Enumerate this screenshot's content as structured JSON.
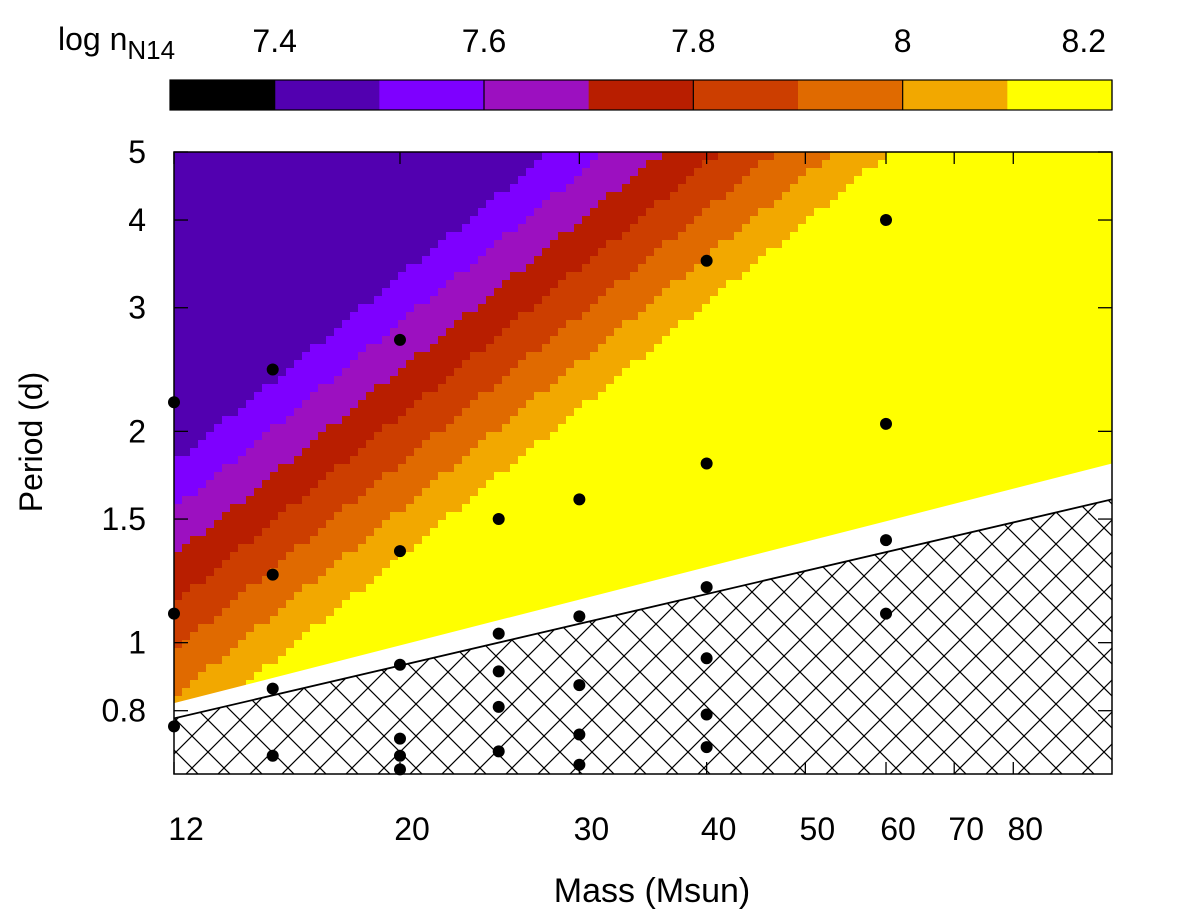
{
  "chart_data": {
    "type": "heatmap",
    "title": "",
    "xlabel": "Mass (Msun)",
    "ylabel": "Period (d)",
    "xscale": "log",
    "yscale": "log",
    "xlim": [
      12,
      100
    ],
    "ylim": [
      0.65,
      5
    ],
    "xticks": [
      {
        "value": 12,
        "label": "12"
      },
      {
        "value": 20,
        "label": "20"
      },
      {
        "value": 30,
        "label": "30"
      },
      {
        "value": 40,
        "label": "40"
      },
      {
        "value": 50,
        "label": "50"
      },
      {
        "value": 60,
        "label": "60"
      },
      {
        "value": 70,
        "label": "70"
      },
      {
        "value": 80,
        "label": "80"
      }
    ],
    "yticks": [
      {
        "value": 0.8,
        "label": "0.8"
      },
      {
        "value": 1,
        "label": "1"
      },
      {
        "value": 1.5,
        "label": "1.5"
      },
      {
        "value": 2,
        "label": "2"
      },
      {
        "value": 3,
        "label": "3"
      },
      {
        "value": 4,
        "label": "4"
      },
      {
        "value": 5,
        "label": "5"
      }
    ],
    "colorbar": {
      "label_main": "log n",
      "label_sub": "N14",
      "range": [
        7.3,
        8.2
      ],
      "tick_labels": [
        {
          "value": 7.4,
          "label": "7.4"
        },
        {
          "value": 7.6,
          "label": "7.6"
        },
        {
          "value": 7.8,
          "label": "7.8"
        },
        {
          "value": 8.0,
          "label": "8"
        },
        {
          "value": 8.2,
          "label": "8.2"
        }
      ],
      "bins": [
        {
          "from": 7.3,
          "to": 7.4,
          "color": "#000000"
        },
        {
          "from": 7.4,
          "to": 7.5,
          "color": "#5200b0"
        },
        {
          "from": 7.5,
          "to": 7.6,
          "color": "#7e00ff"
        },
        {
          "from": 7.6,
          "to": 7.7,
          "color": "#9c10c0"
        },
        {
          "from": 7.7,
          "to": 7.8,
          "color": "#b81e00"
        },
        {
          "from": 7.8,
          "to": 7.9,
          "color": "#cc3e00"
        },
        {
          "from": 7.9,
          "to": 8.0,
          "color": "#e06a00"
        },
        {
          "from": 8.0,
          "to": 8.1,
          "color": "#f2a800"
        },
        {
          "from": 8.1,
          "to": 8.2,
          "color": "#ffff00"
        }
      ]
    },
    "contour_model": {
      "description": "log n_N14 increases toward higher mass and shorter period; iso-contours are power laws P = P0 * (M/12)^slope",
      "base_level_period": 1.5,
      "slope": 1.2,
      "levels_per_dex_period": 1.5
    },
    "excluded_region": {
      "description": "hatched region below the contact / Roche-lobe overflow limit",
      "boundary": [
        {
          "mass": 12,
          "period": 0.78
        },
        {
          "mass": 100,
          "period": 1.6
        }
      ],
      "white_gap_upper_boundary": [
        {
          "mass": 12,
          "period": 0.82
        },
        {
          "mass": 100,
          "period": 1.8
        }
      ]
    },
    "points": [
      {
        "mass": 12,
        "period": 2.2
      },
      {
        "mass": 12,
        "period": 1.1
      },
      {
        "mass": 12,
        "period": 0.76
      },
      {
        "mass": 15,
        "period": 2.45
      },
      {
        "mass": 15,
        "period": 1.25
      },
      {
        "mass": 15,
        "period": 0.86
      },
      {
        "mass": 15,
        "period": 0.69
      },
      {
        "mass": 20,
        "period": 2.7
      },
      {
        "mass": 20,
        "period": 1.35
      },
      {
        "mass": 20,
        "period": 0.93
      },
      {
        "mass": 20,
        "period": 0.73
      },
      {
        "mass": 20,
        "period": 0.69
      },
      {
        "mass": 20,
        "period": 0.66
      },
      {
        "mass": 25,
        "period": 1.5
      },
      {
        "mass": 25,
        "period": 1.03
      },
      {
        "mass": 25,
        "period": 0.91
      },
      {
        "mass": 25,
        "period": 0.81
      },
      {
        "mass": 25,
        "period": 0.7
      },
      {
        "mass": 30,
        "period": 1.6
      },
      {
        "mass": 30,
        "period": 1.09
      },
      {
        "mass": 30,
        "period": 0.87
      },
      {
        "mass": 30,
        "period": 0.74
      },
      {
        "mass": 30,
        "period": 0.67
      },
      {
        "mass": 40,
        "period": 3.5
      },
      {
        "mass": 40,
        "period": 1.8
      },
      {
        "mass": 40,
        "period": 1.2
      },
      {
        "mass": 40,
        "period": 0.95
      },
      {
        "mass": 40,
        "period": 0.79
      },
      {
        "mass": 40,
        "period": 0.71
      },
      {
        "mass": 60,
        "period": 4.0
      },
      {
        "mass": 60,
        "period": 2.05
      },
      {
        "mass": 60,
        "period": 1.4
      },
      {
        "mass": 60,
        "period": 1.1
      }
    ]
  }
}
